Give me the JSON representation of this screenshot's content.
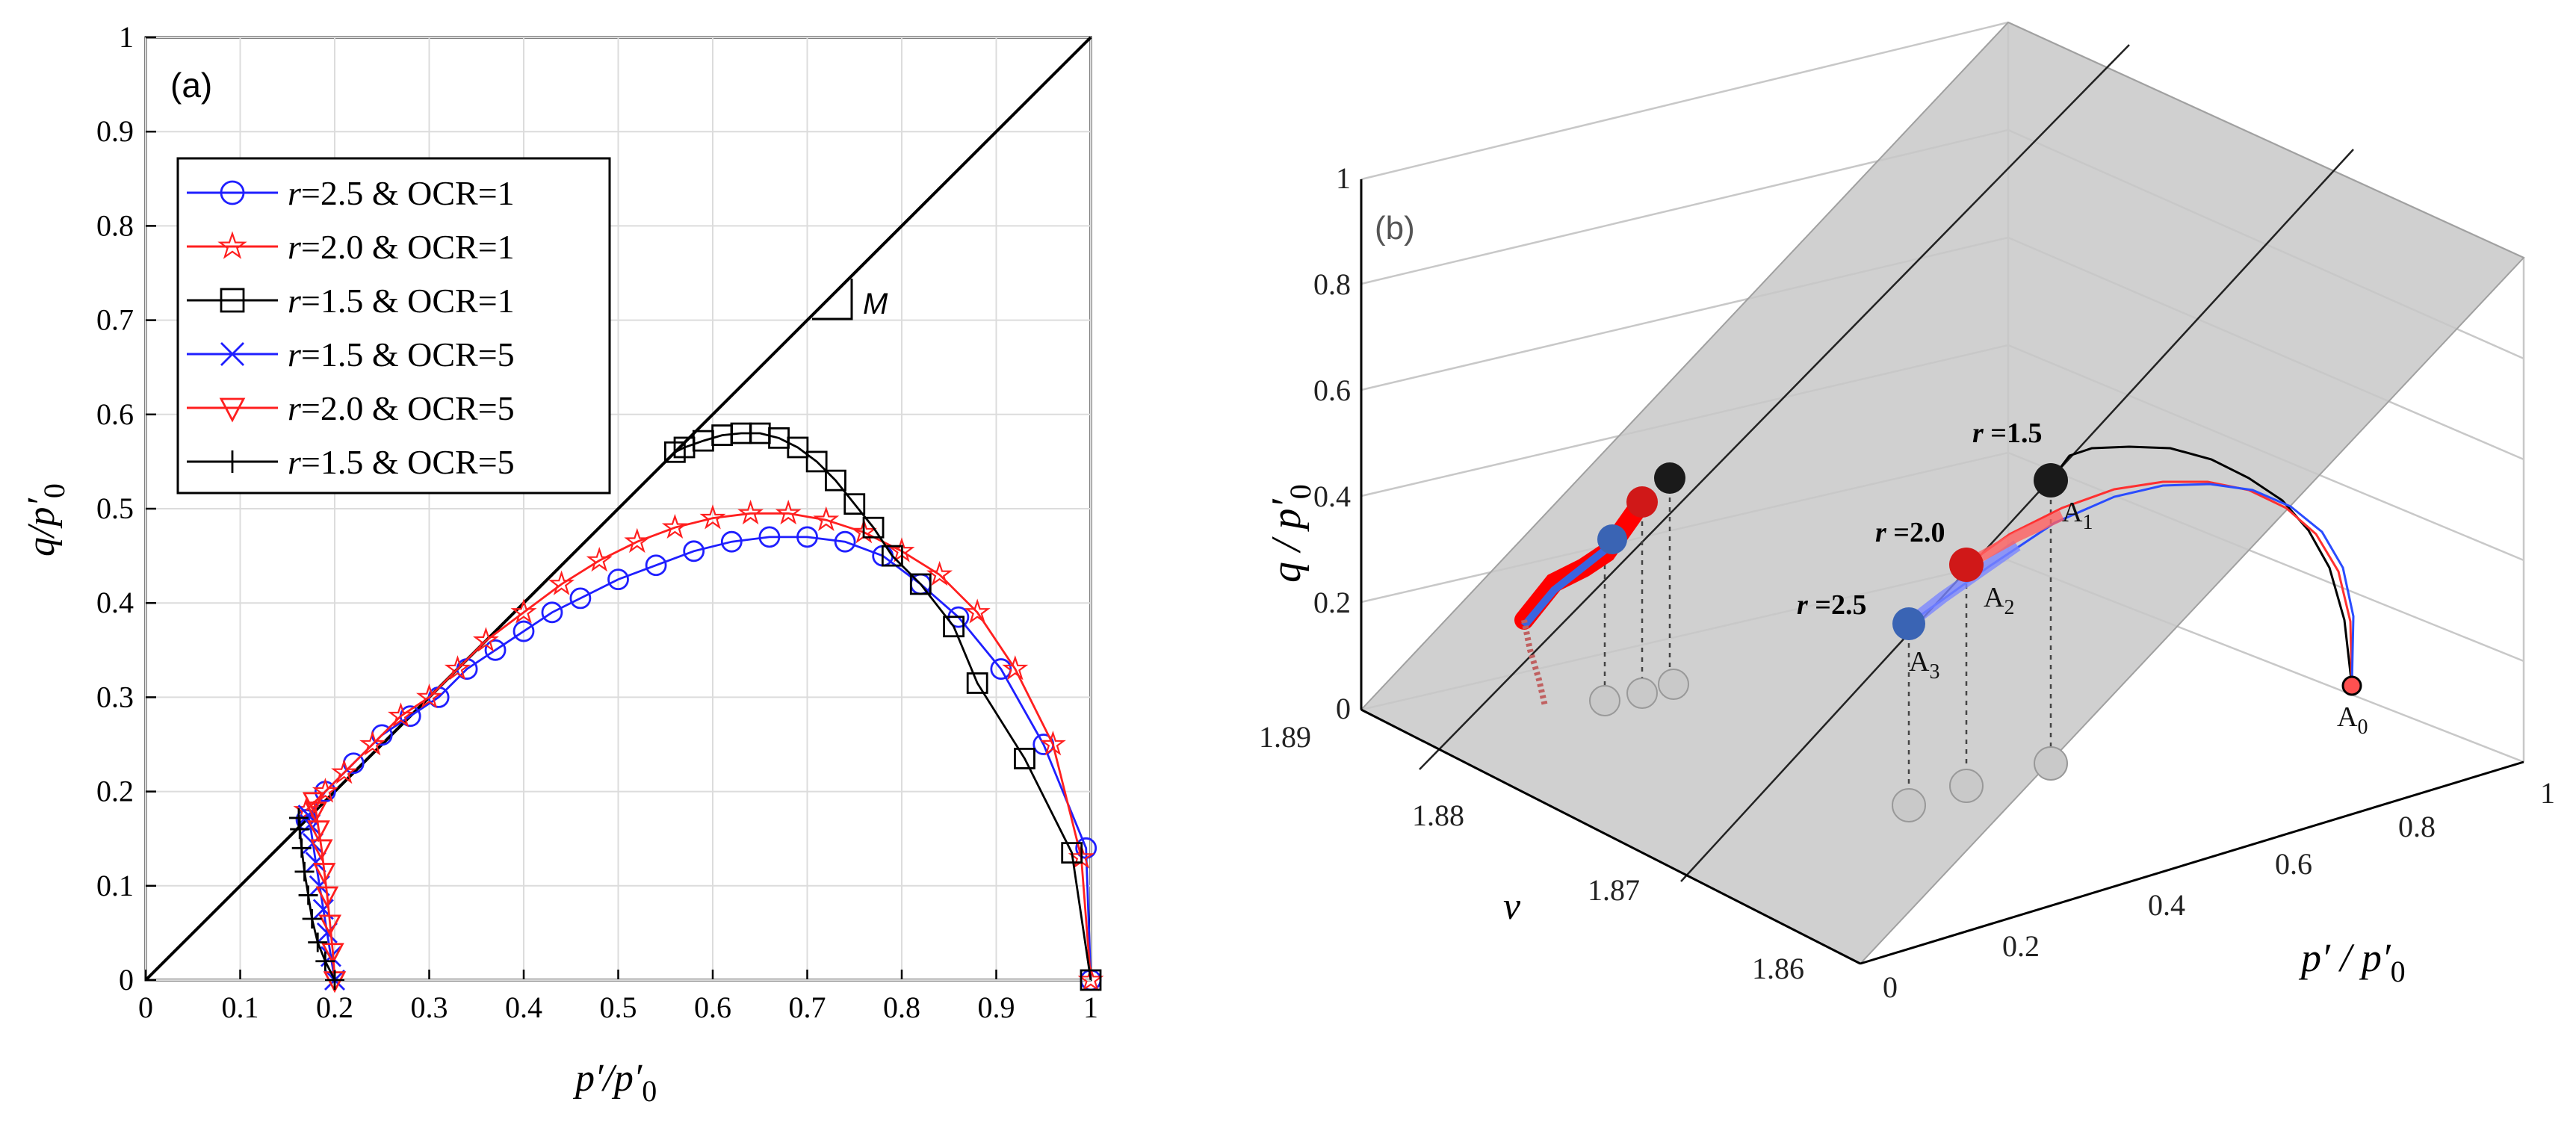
{
  "colors": {
    "blue": "#1f1fff",
    "red": "#ff1f1f",
    "black": "#000000",
    "plane": "#c8c8c8",
    "sphere_blue": "#3a64b4",
    "sphere_red": "#d01818",
    "sphere_black": "#1a1a1a",
    "sphere_grey": "#c9c9c9"
  },
  "chart_data": [
    {
      "id": "a",
      "type": "line",
      "panel_label": "(a)",
      "xlabel": {
        "main": "p′/p′",
        "sub": "0"
      },
      "ylabel": {
        "main": "q/p′",
        "sub": "0"
      },
      "xlim": [
        0,
        1
      ],
      "ylim": [
        0,
        1
      ],
      "grid": true,
      "xticks": [
        0,
        0.1,
        0.2,
        0.3,
        0.4,
        0.5,
        0.6,
        0.7,
        0.8,
        0.9,
        1
      ],
      "yticks": [
        0,
        0.1,
        0.2,
        0.3,
        0.4,
        0.5,
        0.6,
        0.7,
        0.8,
        0.9,
        1
      ],
      "xtick_labels": [
        "0",
        "0.1",
        "0.2",
        "0.3",
        "0.4",
        "0.5",
        "0.6",
        "0.7",
        "0.8",
        "0.9",
        "1"
      ],
      "ytick_labels": [
        "0",
        "0.1",
        "0.2",
        "0.3",
        "0.4",
        "0.5",
        "0.6",
        "0.7",
        "0.8",
        "0.9",
        "1"
      ],
      "csl_label": "M",
      "csl": {
        "x": [
          0,
          1
        ],
        "y": [
          0,
          1
        ]
      },
      "legend_position": "upper-left",
      "series": [
        {
          "name": "r=2.5 & OCR=1",
          "r": "r",
          "label_rest": "=2.5 & OCR=1",
          "color": "blue",
          "marker": "circle",
          "x": [
            1.0,
            0.995,
            0.95,
            0.905,
            0.86,
            0.82,
            0.78,
            0.74,
            0.7,
            0.66,
            0.62,
            0.58,
            0.54,
            0.5,
            0.46,
            0.43,
            0.4,
            0.37,
            0.34,
            0.31,
            0.28,
            0.25,
            0.22,
            0.19,
            0.17
          ],
          "y": [
            0.0,
            0.14,
            0.25,
            0.33,
            0.385,
            0.42,
            0.45,
            0.465,
            0.47,
            0.47,
            0.465,
            0.455,
            0.44,
            0.425,
            0.405,
            0.39,
            0.37,
            0.35,
            0.33,
            0.3,
            0.28,
            0.26,
            0.23,
            0.2,
            0.17
          ]
        },
        {
          "name": "r=2.0 & OCR=1",
          "r": "r",
          "label_rest": "=2.0 & OCR=1",
          "color": "red",
          "marker": "star",
          "x": [
            1.0,
            0.99,
            0.96,
            0.92,
            0.88,
            0.84,
            0.8,
            0.76,
            0.72,
            0.68,
            0.64,
            0.6,
            0.56,
            0.52,
            0.48,
            0.44,
            0.4,
            0.36,
            0.33,
            0.3,
            0.27,
            0.24,
            0.21,
            0.19,
            0.17
          ],
          "y": [
            0.0,
            0.13,
            0.25,
            0.33,
            0.39,
            0.43,
            0.455,
            0.475,
            0.488,
            0.495,
            0.495,
            0.49,
            0.48,
            0.465,
            0.445,
            0.42,
            0.39,
            0.36,
            0.33,
            0.3,
            0.28,
            0.25,
            0.22,
            0.2,
            0.18
          ]
        },
        {
          "name": "r=1.5 & OCR=1",
          "r": "r",
          "label_rest": "=1.5 & OCR=1",
          "color": "black",
          "marker": "square",
          "x": [
            1.0,
            0.98,
            0.93,
            0.88,
            0.855,
            0.82,
            0.79,
            0.77,
            0.75,
            0.73,
            0.71,
            0.69,
            0.67,
            0.65,
            0.63,
            0.61,
            0.59,
            0.57,
            0.56
          ],
          "y": [
            0.0,
            0.135,
            0.235,
            0.315,
            0.375,
            0.42,
            0.45,
            0.48,
            0.505,
            0.53,
            0.55,
            0.565,
            0.575,
            0.58,
            0.58,
            0.578,
            0.572,
            0.565,
            0.56
          ]
        },
        {
          "name": "r=1.5 & OCR=5",
          "r": "r",
          "label_rest": "=1.5 & OCR=5",
          "color": "blue",
          "marker": "x",
          "x": [
            0.2,
            0.196,
            0.192,
            0.188,
            0.184,
            0.18,
            0.177,
            0.174,
            0.172
          ],
          "y": [
            0.0,
            0.025,
            0.05,
            0.075,
            0.1,
            0.125,
            0.145,
            0.165,
            0.175
          ]
        },
        {
          "name": "r=2.0 & OCR=5",
          "r": "r",
          "label_rest": "=2.0 & OCR=5",
          "color": "red",
          "marker": "triangle-down",
          "x": [
            0.2,
            0.198,
            0.195,
            0.192,
            0.189,
            0.186,
            0.183,
            0.18,
            0.178
          ],
          "y": [
            0.0,
            0.03,
            0.06,
            0.09,
            0.115,
            0.14,
            0.16,
            0.18,
            0.19
          ]
        },
        {
          "name": "r=1.5 & OCR=5",
          "r": "r",
          "label_rest": "=1.5 & OCR=5",
          "color": "black",
          "marker": "plus",
          "x": [
            0.2,
            0.19,
            0.182,
            0.176,
            0.172,
            0.168,
            0.165,
            0.163,
            0.162
          ],
          "y": [
            0.0,
            0.02,
            0.04,
            0.065,
            0.09,
            0.115,
            0.14,
            0.16,
            0.172
          ]
        }
      ]
    },
    {
      "id": "b",
      "type": "line-3d",
      "panel_label": "(b)",
      "xlabel": {
        "main": "p′ / p′",
        "sub": "0"
      },
      "ylabel": {
        "main": "ν",
        "sub": ""
      },
      "zlabel": {
        "main": "q / p′",
        "sub": "0"
      },
      "xlim": [
        0,
        1
      ],
      "vlim": [
        1.86,
        1.89
      ],
      "zlim": [
        0,
        1
      ],
      "xtick_labels": [
        "0",
        "0.2",
        "0.4",
        "0.6",
        "0.8",
        "1"
      ],
      "vtick_labels": [
        "1.86",
        "1.87",
        "1.88",
        "1.89"
      ],
      "ztick_labels": [
        "0",
        "0.2",
        "0.4",
        "0.6",
        "0.8",
        "1"
      ],
      "annotations": [
        {
          "text": "r =1.5",
          "r": "r",
          "rest": " =1.5"
        },
        {
          "text": "r =2.0",
          "r": "r",
          "rest": " =2.0"
        },
        {
          "text": "r =2.5",
          "r": "r",
          "rest": " =2.5"
        }
      ],
      "points": [
        {
          "base": "A",
          "sub": "0"
        },
        {
          "base": "A",
          "sub": "1"
        },
        {
          "base": "A",
          "sub": "2"
        },
        {
          "base": "A",
          "sub": "3"
        }
      ]
    }
  ]
}
